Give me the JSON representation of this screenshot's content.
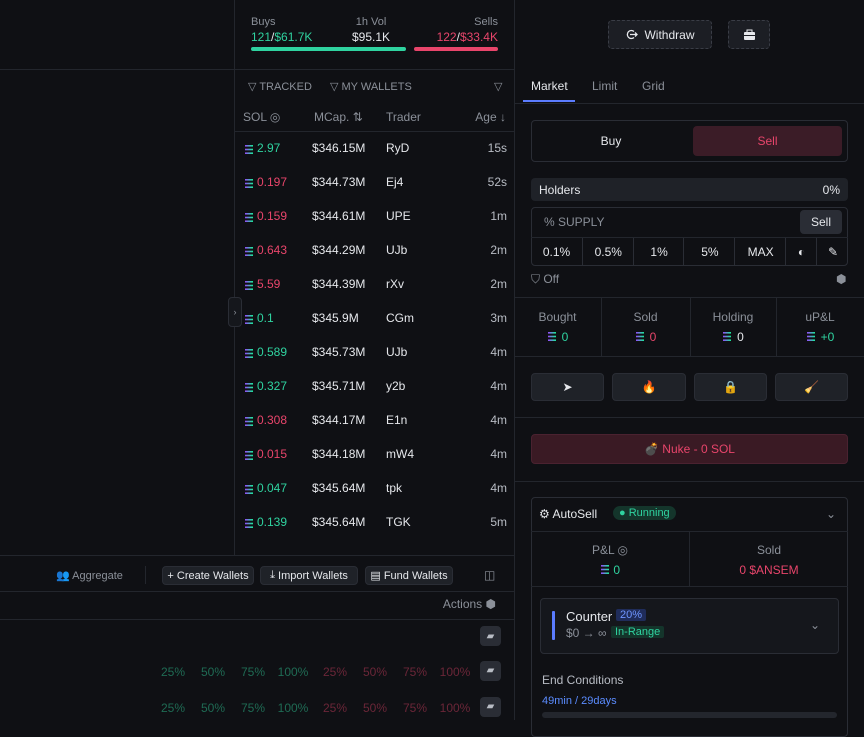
{
  "stats": {
    "buys": {
      "label": "Buys",
      "count": "121",
      "sep": "/",
      "value": "$61.7K"
    },
    "volume": {
      "label": "1h Vol",
      "value": "$95.1K"
    },
    "sells": {
      "label": "Sells",
      "count": "122",
      "sep": "/",
      "value": "$33.4K"
    }
  },
  "header": {
    "withdraw": "Withdraw"
  },
  "filters": {
    "tracked": "TRACKED",
    "my_wallets": "MY WALLETS"
  },
  "trades": {
    "columns": [
      "SOL",
      "MCap.",
      "Trader",
      "Age"
    ],
    "rows": [
      {
        "sol": "2.97",
        "mcap": "$346.15M",
        "trader": "RyD",
        "age": "15s",
        "color": "#2fd3a0"
      },
      {
        "sol": "0.197",
        "mcap": "$344.73M",
        "trader": "Ej4",
        "age": "52s",
        "color": "#e8456b"
      },
      {
        "sol": "0.159",
        "mcap": "$344.61M",
        "trader": "UPE",
        "age": "1m",
        "color": "#e8456b"
      },
      {
        "sol": "0.643",
        "mcap": "$344.29M",
        "trader": "UJb",
        "age": "2m",
        "color": "#e8456b"
      },
      {
        "sol": "5.59",
        "mcap": "$344.39M",
        "trader": "rXv",
        "age": "2m",
        "color": "#e8456b"
      },
      {
        "sol": "0.1",
        "mcap": "$345.9M",
        "trader": "CGm",
        "age": "3m",
        "color": "#2fd3a0"
      },
      {
        "sol": "0.589",
        "mcap": "$345.73M",
        "trader": "UJb",
        "age": "4m",
        "color": "#2fd3a0"
      },
      {
        "sol": "0.327",
        "mcap": "$345.71M",
        "trader": "y2b",
        "age": "4m",
        "color": "#2fd3a0"
      },
      {
        "sol": "0.308",
        "mcap": "$344.17M",
        "trader": "E1n",
        "age": "4m",
        "color": "#e8456b"
      },
      {
        "sol": "0.015",
        "mcap": "$344.18M",
        "trader": "mW4",
        "age": "4m",
        "color": "#e8456b"
      },
      {
        "sol": "0.047",
        "mcap": "$345.64M",
        "trader": "tpk",
        "age": "4m",
        "color": "#2fd3a0"
      },
      {
        "sol": "0.139",
        "mcap": "$345.64M",
        "trader": "TGK",
        "age": "5m",
        "color": "#2fd3a0"
      }
    ]
  },
  "wallet_toolbar": {
    "aggregate": "Aggregate",
    "create": "+ Create Wallets",
    "import": "Import Wallets",
    "fund": "Fund Wallets",
    "actions": "Actions"
  },
  "quick_rows": [
    {
      "buy": [
        "25%",
        "50%",
        "75%",
        "100%"
      ],
      "sell": [
        "25%",
        "50%",
        "75%",
        "100%"
      ]
    },
    {
      "buy": [
        "25%",
        "50%",
        "75%",
        "100%"
      ],
      "sell": [
        "25%",
        "50%",
        "75%",
        "100%"
      ]
    }
  ],
  "order": {
    "tabs": [
      "Market",
      "Limit",
      "Grid"
    ],
    "sides": [
      "Buy",
      "Sell"
    ],
    "holders": {
      "label": "Holders",
      "value": "0%"
    },
    "supply": {
      "label": "% SUPPLY",
      "button": "Sell"
    },
    "presets": [
      "0.1%",
      "0.5%",
      "1%",
      "5%",
      "MAX"
    ],
    "toggle": "Off"
  },
  "position": [
    {
      "label": "Bought",
      "value": "0",
      "color": "#2fd3a0"
    },
    {
      "label": "Sold",
      "value": "0",
      "color": "#e8456b"
    },
    {
      "label": "Holding",
      "value": "0",
      "color": "#e6e8ec"
    },
    {
      "label": "uP&L",
      "value": "+0",
      "color": "#2fd3a0"
    }
  ],
  "nuke": "Nuke - 0 SOL",
  "autosell": {
    "title": "AutoSell",
    "status": "Running",
    "pnl": {
      "label": "P&L",
      "value": "0"
    },
    "sold": {
      "label": "Sold",
      "value": "0 $ANSEM"
    },
    "strategy": {
      "name": "Counter",
      "percent": "20%",
      "range": "$0 → ∞",
      "state": "In-Range"
    },
    "end_conditions": {
      "label": "End Conditions",
      "value": "49min / 29days"
    }
  }
}
